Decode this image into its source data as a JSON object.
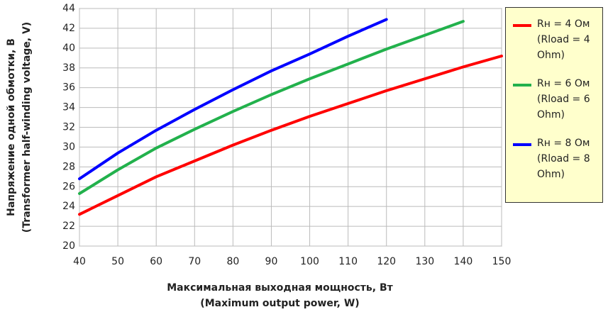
{
  "chart_data": {
    "type": "line",
    "xlabel": [
      "Максимальная выходная мощность, Вт",
      "(Maximum output power, W)"
    ],
    "ylabel": [
      "Напряжение одной обмотки, В",
      "(Transformer half-winding voltage, V)"
    ],
    "xlim": [
      40,
      150
    ],
    "xticks": [
      40,
      50,
      60,
      70,
      80,
      90,
      100,
      110,
      120,
      130,
      140,
      150
    ],
    "ylim": [
      20,
      44
    ],
    "yticks": [
      20,
      22,
      24,
      26,
      28,
      30,
      32,
      34,
      36,
      38,
      40,
      42,
      44
    ],
    "grid": true,
    "series": [
      {
        "name": "Rн = 4 Ом (Rload = 4 Ohm)",
        "color": "#ff0000",
        "x": [
          40,
          50,
          60,
          70,
          80,
          90,
          100,
          110,
          120,
          130,
          140,
          150
        ],
        "values": [
          23.2,
          25.1,
          27.0,
          28.6,
          30.2,
          31.7,
          33.1,
          34.4,
          35.7,
          36.9,
          38.1,
          39.2
        ]
      },
      {
        "name": "Rн = 6 Ом (Rload = 6 Ohm)",
        "color": "#22b14c",
        "x": [
          40,
          50,
          60,
          70,
          80,
          90,
          100,
          110,
          120,
          130,
          140
        ],
        "values": [
          25.3,
          27.7,
          29.9,
          31.8,
          33.6,
          35.3,
          36.9,
          38.4,
          39.9,
          41.3,
          42.7
        ]
      },
      {
        "name": "Rн = 8 Ом (Rload = 8 Ohm)",
        "color": "#0000ff",
        "x": [
          40,
          50,
          60,
          70,
          80,
          90,
          100,
          110,
          120
        ],
        "values": [
          26.8,
          29.4,
          31.7,
          33.8,
          35.8,
          37.7,
          39.4,
          41.2,
          42.9
        ]
      }
    ]
  }
}
